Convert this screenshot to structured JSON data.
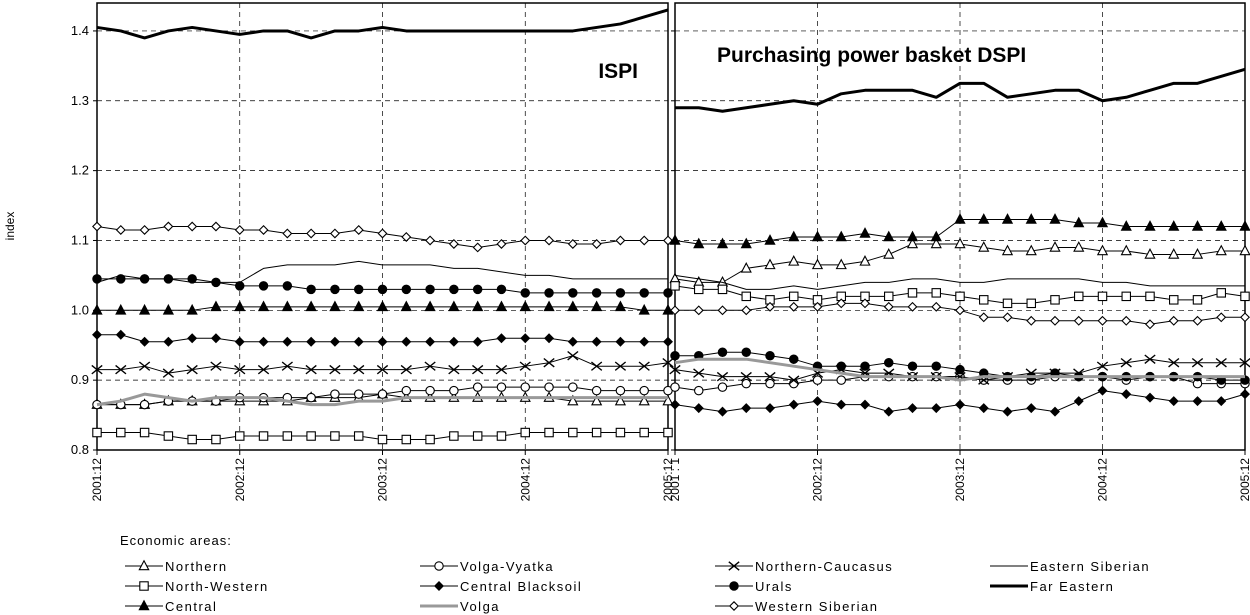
{
  "chart_data": [
    {
      "type": "line",
      "title": "ISPI",
      "y_label": "index",
      "legend_title": "Economic areas:",
      "categories": [
        "2001:12",
        null,
        null,
        null,
        null,
        null,
        "2002:12",
        null,
        null,
        null,
        null,
        null,
        "2003:12",
        null,
        null,
        null,
        null,
        null,
        "2004:12",
        null,
        null,
        null,
        null,
        null,
        "2005:12"
      ],
      "ylim": [
        0.8,
        1.44
      ],
      "yticks": [
        0.8,
        0.9,
        {
          "value": 1,
          "label": "1.0"
        },
        1.1,
        1.2,
        1.3,
        1.4
      ],
      "grid": true,
      "series": [
        {
          "name": "Northern",
          "color": "#000000",
          "marker": "triangle-open",
          "width": 1,
          "values": [
            0.865,
            0.865,
            0.865,
            0.87,
            0.87,
            0.87,
            0.87,
            0.87,
            0.87,
            0.875,
            0.875,
            0.875,
            0.88,
            0.875,
            0.875,
            0.875,
            0.875,
            0.875,
            0.875,
            0.875,
            0.87,
            0.87,
            0.87,
            0.87,
            0.87
          ]
        },
        {
          "name": "Volga-Vyatka",
          "color": "#000000",
          "marker": "circle-open",
          "width": 1,
          "values": [
            0.865,
            0.865,
            0.865,
            0.87,
            0.87,
            0.87,
            0.875,
            0.875,
            0.875,
            0.875,
            0.88,
            0.88,
            0.88,
            0.885,
            0.885,
            0.885,
            0.89,
            0.89,
            0.89,
            0.89,
            0.89,
            0.885,
            0.885,
            0.885,
            0.885
          ]
        },
        {
          "name": "Northern-Caucasus",
          "color": "#000000",
          "marker": "cross",
          "width": 1,
          "values": [
            0.915,
            0.915,
            0.92,
            0.91,
            0.915,
            0.92,
            0.915,
            0.915,
            0.92,
            0.915,
            0.915,
            0.915,
            0.915,
            0.915,
            0.92,
            0.915,
            0.915,
            0.915,
            0.92,
            0.925,
            0.935,
            0.92,
            0.92,
            0.92,
            0.925
          ]
        },
        {
          "name": "Eastern Siberian",
          "color": "#000000",
          "marker": "none",
          "width": 1,
          "values": [
            1.04,
            1.05,
            1.045,
            1.045,
            1.04,
            1.04,
            1.04,
            1.06,
            1.065,
            1.065,
            1.065,
            1.07,
            1.065,
            1.065,
            1.065,
            1.06,
            1.06,
            1.055,
            1.05,
            1.05,
            1.045,
            1.045,
            1.045,
            1.045,
            1.045
          ]
        },
        {
          "name": "North-Western",
          "color": "#000000",
          "marker": "square-open",
          "width": 1,
          "values": [
            0.825,
            0.825,
            0.825,
            0.82,
            0.815,
            0.815,
            0.82,
            0.82,
            0.82,
            0.82,
            0.82,
            0.82,
            0.815,
            0.815,
            0.815,
            0.82,
            0.82,
            0.82,
            0.825,
            0.825,
            0.825,
            0.825,
            0.825,
            0.825,
            0.825
          ]
        },
        {
          "name": "Central Blacksoil",
          "color": "#000000",
          "marker": "diamond-filled",
          "width": 1,
          "values": [
            0.965,
            0.965,
            0.955,
            0.955,
            0.96,
            0.96,
            0.955,
            0.955,
            0.955,
            0.955,
            0.955,
            0.955,
            0.955,
            0.955,
            0.955,
            0.955,
            0.955,
            0.96,
            0.96,
            0.96,
            0.955,
            0.955,
            0.955,
            0.955,
            0.955
          ]
        },
        {
          "name": "Urals",
          "color": "#000000",
          "marker": "circle-filled",
          "width": 1,
          "values": [
            1.045,
            1.045,
            1.045,
            1.045,
            1.045,
            1.04,
            1.035,
            1.035,
            1.035,
            1.03,
            1.03,
            1.03,
            1.03,
            1.03,
            1.03,
            1.03,
            1.03,
            1.03,
            1.025,
            1.025,
            1.025,
            1.025,
            1.025,
            1.025,
            1.025
          ]
        },
        {
          "name": "Far Eastern",
          "color": "#000000",
          "marker": "none",
          "width": 3,
          "values": [
            1.405,
            1.4,
            1.39,
            1.4,
            1.405,
            1.4,
            1.395,
            1.4,
            1.4,
            1.39,
            1.4,
            1.4,
            1.405,
            1.4,
            1.4,
            1.4,
            1.4,
            1.4,
            1.4,
            1.4,
            1.4,
            1.405,
            1.41,
            1.42,
            1.43
          ]
        },
        {
          "name": "Central",
          "color": "#000000",
          "marker": "triangle-filled",
          "width": 1,
          "values": [
            1,
            1,
            1,
            1,
            1,
            1.005,
            1.005,
            1.005,
            1.005,
            1.005,
            1.005,
            1.005,
            1.005,
            1.005,
            1.005,
            1.005,
            1.005,
            1.005,
            1.005,
            1.005,
            1.005,
            1.005,
            1.005,
            1,
            1
          ]
        },
        {
          "name": "Volga",
          "color": "#999999",
          "marker": "none",
          "width": 3,
          "values": [
            0.865,
            0.87,
            0.88,
            0.875,
            0.87,
            0.875,
            0.875,
            0.875,
            0.87,
            0.865,
            0.865,
            0.87,
            0.87,
            0.875,
            0.875,
            0.875,
            0.875,
            0.875,
            0.875,
            0.875,
            0.875,
            0.875,
            0.875,
            0.875,
            0.875
          ]
        },
        {
          "name": "Western Siberian",
          "color": "#000000",
          "marker": "diamond-open",
          "width": 1,
          "values": [
            1.12,
            1.115,
            1.115,
            1.12,
            1.12,
            1.12,
            1.115,
            1.115,
            1.11,
            1.11,
            1.11,
            1.115,
            1.11,
            1.105,
            1.1,
            1.095,
            1.09,
            1.095,
            1.1,
            1.1,
            1.095,
            1.095,
            1.1,
            1.1,
            1.1
          ]
        }
      ]
    },
    {
      "type": "line",
      "title": "Purchasing power basket DSPI",
      "categories": [
        "2001 : 1",
        null,
        null,
        null,
        null,
        null,
        "2002:12",
        null,
        null,
        null,
        null,
        null,
        "2003:12",
        null,
        null,
        null,
        null,
        null,
        "2004:12",
        null,
        null,
        null,
        null,
        null,
        "2005:12"
      ],
      "ylim": [
        0.8,
        1.44
      ],
      "yticks": [
        0.8,
        0.9,
        1,
        1.1,
        1.2,
        1.3,
        1.4
      ],
      "grid": true,
      "series": [
        {
          "name": "Northern",
          "color": "#000000",
          "marker": "triangle-open",
          "width": 1,
          "values": [
            1.045,
            1.04,
            1.04,
            1.06,
            1.065,
            1.07,
            1.065,
            1.065,
            1.07,
            1.08,
            1.095,
            1.095,
            1.095,
            1.09,
            1.085,
            1.085,
            1.09,
            1.09,
            1.085,
            1.085,
            1.08,
            1.08,
            1.08,
            1.085,
            1.085
          ]
        },
        {
          "name": "Volga-Vyatka",
          "color": "#000000",
          "marker": "circle-open",
          "width": 1,
          "values": [
            0.89,
            0.885,
            0.89,
            0.895,
            0.895,
            0.895,
            0.9,
            0.9,
            0.905,
            0.905,
            0.905,
            0.905,
            0.905,
            0.9,
            0.9,
            0.9,
            0.905,
            0.905,
            0.905,
            0.9,
            0.905,
            0.905,
            0.895,
            0.895,
            0.895
          ]
        },
        {
          "name": "Northern-Caucasus",
          "color": "#000000",
          "marker": "cross",
          "width": 1,
          "values": [
            0.915,
            0.91,
            0.905,
            0.905,
            0.905,
            0.9,
            0.91,
            0.915,
            0.91,
            0.91,
            0.905,
            0.905,
            0.905,
            0.9,
            0.905,
            0.91,
            0.91,
            0.91,
            0.92,
            0.925,
            0.93,
            0.925,
            0.925,
            0.925,
            0.925
          ]
        },
        {
          "name": "Eastern Siberian",
          "color": "#000000",
          "marker": "none",
          "width": 1,
          "values": [
            1.05,
            1.045,
            1.04,
            1.03,
            1.03,
            1.035,
            1.03,
            1.035,
            1.04,
            1.04,
            1.045,
            1.045,
            1.04,
            1.04,
            1.045,
            1.045,
            1.045,
            1.045,
            1.04,
            1.04,
            1.035,
            1.035,
            1.035,
            1.035,
            1.035
          ]
        },
        {
          "name": "North-Western",
          "color": "#000000",
          "marker": "square-open",
          "width": 1,
          "values": [
            1.035,
            1.03,
            1.03,
            1.02,
            1.015,
            1.02,
            1.015,
            1.02,
            1.02,
            1.02,
            1.025,
            1.025,
            1.02,
            1.015,
            1.01,
            1.01,
            1.015,
            1.02,
            1.02,
            1.02,
            1.02,
            1.015,
            1.015,
            1.025,
            1.02
          ]
        },
        {
          "name": "Central Blacksoil",
          "color": "#000000",
          "marker": "diamond-filled",
          "width": 1,
          "values": [
            0.865,
            0.86,
            0.855,
            0.86,
            0.86,
            0.865,
            0.87,
            0.865,
            0.865,
            0.855,
            0.86,
            0.86,
            0.865,
            0.86,
            0.855,
            0.86,
            0.855,
            0.87,
            0.885,
            0.88,
            0.875,
            0.87,
            0.87,
            0.87,
            0.88
          ]
        },
        {
          "name": "Urals",
          "color": "#000000",
          "marker": "circle-filled",
          "width": 1,
          "values": [
            0.935,
            0.935,
            0.94,
            0.94,
            0.935,
            0.93,
            0.92,
            0.92,
            0.92,
            0.925,
            0.92,
            0.92,
            0.915,
            0.91,
            0.905,
            0.905,
            0.91,
            0.905,
            0.905,
            0.905,
            0.905,
            0.905,
            0.905,
            0.9,
            0.9
          ]
        },
        {
          "name": "Far Eastern",
          "color": "#000000",
          "marker": "none",
          "width": 3,
          "values": [
            1.29,
            1.29,
            1.285,
            1.29,
            1.295,
            1.3,
            1.295,
            1.31,
            1.315,
            1.315,
            1.315,
            1.305,
            1.325,
            1.325,
            1.305,
            1.31,
            1.315,
            1.315,
            1.3,
            1.305,
            1.315,
            1.325,
            1.325,
            1.335,
            1.345
          ]
        },
        {
          "name": "Central",
          "color": "#000000",
          "marker": "triangle-filled",
          "width": 1,
          "values": [
            1.1,
            1.095,
            1.095,
            1.095,
            1.1,
            1.105,
            1.105,
            1.105,
            1.11,
            1.105,
            1.105,
            1.105,
            1.13,
            1.13,
            1.13,
            1.13,
            1.13,
            1.125,
            1.125,
            1.12,
            1.12,
            1.12,
            1.12,
            1.12,
            1.12
          ]
        },
        {
          "name": "Volga",
          "color": "#999999",
          "marker": "none",
          "width": 3,
          "values": [
            0.925,
            0.93,
            0.93,
            0.93,
            0.925,
            0.92,
            0.915,
            0.91,
            0.905,
            0.905,
            0.905,
            0.905,
            0.9,
            0.905,
            0.905,
            0.905,
            0.905,
            0.905,
            0.905,
            0.905,
            0.905,
            0.905,
            0.905,
            0.905,
            0.905
          ]
        },
        {
          "name": "Western Siberian",
          "color": "#000000",
          "marker": "diamond-open",
          "width": 1,
          "values": [
            1,
            1,
            1,
            1,
            1.005,
            1.005,
            1.005,
            1.01,
            1.01,
            1.005,
            1.005,
            1.005,
            1,
            0.99,
            0.99,
            0.985,
            0.985,
            0.985,
            0.985,
            0.985,
            0.98,
            0.985,
            0.985,
            0.99,
            0.99
          ]
        }
      ]
    }
  ]
}
